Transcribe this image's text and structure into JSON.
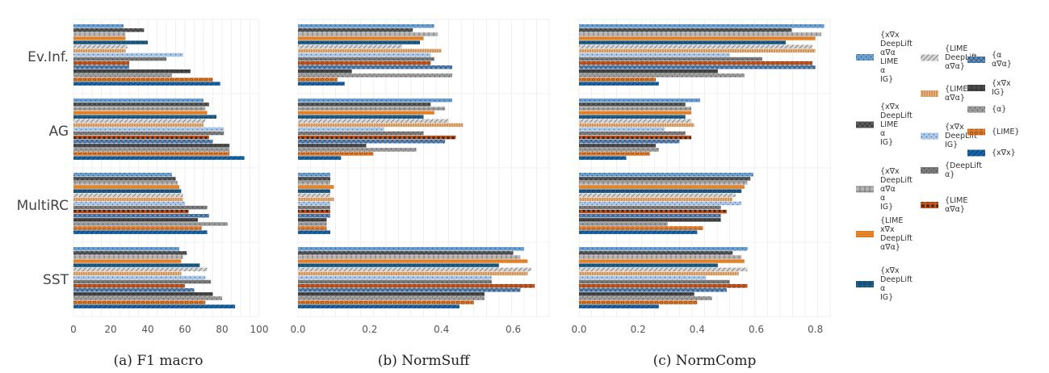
{
  "chart_data": {
    "type": "bar",
    "orientation": "horizontal",
    "grid": true,
    "legend_position": "right",
    "datasets": [
      "Ev.Inf.",
      "AG",
      "MultiRC",
      "SST"
    ],
    "series": [
      {
        "name": "{x∇x DeepLift α∇α LIME α IG}",
        "color": "#6a9fd1",
        "pattern": "dots"
      },
      {
        "name": "{x∇x DeepLift LIME α IG}",
        "color": "#5f5f5f",
        "pattern": "cross"
      },
      {
        "name": "{x∇x DeepLift α∇α α IG}",
        "color": "#b5b5b5",
        "pattern": "grid"
      },
      {
        "name": "{LIME x∇x DeepLift α∇α}",
        "color": "#f08a2c",
        "pattern": "hline"
      },
      {
        "name": "{x∇x DeepLift α IG}",
        "color": "#1f5f8c",
        "pattern": "circles"
      },
      {
        "name": "{LIME DeepLift α∇α}",
        "color": "#d6d6d6",
        "pattern": "diag"
      },
      {
        "name": "{LIME α∇α}",
        "color": "#f7b77a",
        "pattern": "vline"
      },
      {
        "name": "{x∇x DeepLift IG}",
        "color": "#a9c8ea",
        "pattern": "dots"
      },
      {
        "name": "{DeepLift α}",
        "color": "#7a7a7a",
        "pattern": "dots"
      },
      {
        "name": "{LIME α∇α}",
        "color": "#c8561b",
        "pattern": "stars"
      },
      {
        "name": "{α α∇α}",
        "color": "#5f8fc4",
        "pattern": "cross"
      },
      {
        "name": "{x∇x IG}",
        "color": "#4a4a4a",
        "pattern": "grid"
      },
      {
        "name": "{α}",
        "color": "#9a9a9a",
        "pattern": "dots"
      },
      {
        "name": "{LIME}",
        "color": "#e07a2a",
        "pattern": "circles"
      },
      {
        "name": "{x∇x}",
        "color": "#1565a8",
        "pattern": "diag"
      }
    ],
    "panels": [
      {
        "caption": "(a) F1 macro",
        "xlim": [
          0,
          100
        ],
        "xticks": [
          "0",
          "20",
          "40",
          "60",
          "80",
          "100"
        ],
        "values": [
          [
            27,
            38,
            28,
            28,
            40,
            29,
            28,
            59,
            50,
            30,
            30,
            63,
            53,
            75,
            79
          ],
          [
            70,
            73,
            71,
            72,
            77,
            71,
            70,
            81,
            81,
            73,
            75,
            84,
            84,
            84,
            92
          ],
          [
            53,
            55,
            56,
            57,
            58,
            59,
            59,
            60,
            72,
            62,
            73,
            67,
            83,
            69,
            72
          ],
          [
            57,
            61,
            59,
            58,
            68,
            72,
            58,
            71,
            74,
            60,
            65,
            75,
            80,
            71,
            87
          ]
        ]
      },
      {
        "caption": "(b) NormSuff",
        "xlim": [
          0,
          0.7
        ],
        "xticks": [
          "0.0",
          "0.2",
          "0.4",
          "0.6"
        ],
        "values": [
          [
            0.38,
            0.32,
            0.39,
            0.35,
            0.34,
            0.29,
            0.4,
            0.37,
            0.38,
            0.37,
            0.43,
            0.15,
            0.43,
            0.11,
            0.13
          ],
          [
            0.43,
            0.37,
            0.41,
            0.38,
            0.35,
            0.42,
            0.46,
            0.24,
            0.35,
            0.44,
            0.41,
            0.19,
            0.33,
            0.21,
            0.12
          ],
          [
            0.09,
            0.09,
            0.09,
            0.1,
            0.09,
            0.09,
            0.1,
            0.09,
            0.09,
            0.09,
            0.09,
            0.08,
            0.08,
            0.08,
            0.09
          ],
          [
            0.63,
            0.6,
            0.62,
            0.64,
            0.56,
            0.65,
            0.64,
            0.54,
            0.54,
            0.66,
            0.62,
            0.52,
            0.52,
            0.49,
            0.45
          ]
        ]
      },
      {
        "caption": "(c) NormComp",
        "xlim": [
          0,
          0.85
        ],
        "xticks": [
          "0.0",
          "0.2",
          "0.4",
          "0.6",
          "0.8"
        ],
        "values": [
          [
            0.83,
            0.72,
            0.82,
            0.8,
            0.7,
            0.79,
            0.8,
            0.51,
            0.62,
            0.79,
            0.8,
            0.47,
            0.56,
            0.26,
            0.27
          ],
          [
            0.41,
            0.36,
            0.38,
            0.38,
            0.36,
            0.38,
            0.39,
            0.29,
            0.36,
            0.38,
            0.34,
            0.26,
            0.27,
            0.24,
            0.16
          ],
          [
            0.59,
            0.58,
            0.57,
            0.56,
            0.55,
            0.53,
            0.52,
            0.55,
            0.48,
            0.5,
            0.48,
            0.48,
            0.3,
            0.42,
            0.4
          ],
          [
            0.57,
            0.52,
            0.55,
            0.56,
            0.47,
            0.57,
            0.54,
            0.43,
            0.51,
            0.57,
            0.5,
            0.39,
            0.45,
            0.4,
            0.27
          ]
        ]
      }
    ]
  }
}
